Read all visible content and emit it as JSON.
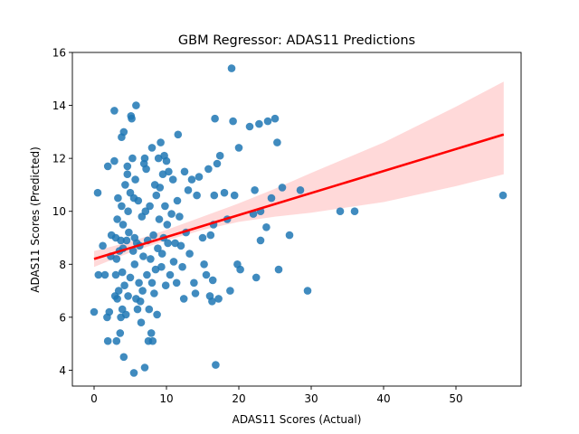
{
  "chart_data": {
    "type": "scatter",
    "title": "GBM Regressor: ADAS11 Predictions",
    "xlabel": "ADAS11 Scores (Actual)",
    "ylabel": "ADAS11 Scores (Predicted)",
    "xlim": [
      -3,
      59
    ],
    "ylim": [
      3.4,
      16
    ],
    "xticks": [
      0,
      10,
      20,
      30,
      40,
      50
    ],
    "yticks": [
      4,
      6,
      8,
      10,
      12,
      14,
      16
    ],
    "grid": false,
    "colors": {
      "points": "#1f77b4",
      "regression_line": "#ff0000",
      "confidence_band": "#ffcccc"
    },
    "regression": {
      "x": [
        0,
        56.6
      ],
      "y": [
        8.2,
        12.9
      ]
    },
    "confidence_band": {
      "x": [
        0,
        5,
        10,
        15,
        20,
        25,
        30,
        40,
        50,
        56.6
      ],
      "lower": [
        7.9,
        8.45,
        8.9,
        9.3,
        9.6,
        9.8,
        9.95,
        10.35,
        10.95,
        11.4
      ],
      "upper": [
        8.5,
        8.85,
        9.3,
        9.8,
        10.3,
        10.85,
        11.45,
        12.6,
        13.95,
        14.9
      ]
    },
    "points": [
      [
        0,
        6.2
      ],
      [
        0.5,
        10.7
      ],
      [
        0.6,
        7.6
      ],
      [
        1.2,
        8.7
      ],
      [
        1.5,
        7.6
      ],
      [
        1.8,
        6.0
      ],
      [
        1.9,
        5.1
      ],
      [
        1.9,
        11.7
      ],
      [
        2.1,
        6.2
      ],
      [
        2.3,
        8.3
      ],
      [
        2.4,
        9.1
      ],
      [
        2.8,
        13.8
      ],
      [
        2.8,
        11.9
      ],
      [
        2.9,
        6.8
      ],
      [
        3.0,
        7.6
      ],
      [
        3.0,
        9.0
      ],
      [
        3.1,
        5.1
      ],
      [
        3.1,
        8.2
      ],
      [
        3.2,
        6.7
      ],
      [
        3.2,
        9.7
      ],
      [
        3.3,
        10.5
      ],
      [
        3.4,
        7.0
      ],
      [
        3.5,
        8.5
      ],
      [
        3.6,
        5.4
      ],
      [
        3.7,
        6.0
      ],
      [
        3.7,
        8.9
      ],
      [
        3.8,
        12.8
      ],
      [
        3.8,
        10.2
      ],
      [
        3.9,
        6.3
      ],
      [
        3.9,
        7.7
      ],
      [
        4.0,
        8.6
      ],
      [
        4.0,
        9.5
      ],
      [
        4.1,
        13.0
      ],
      [
        4.1,
        4.5
      ],
      [
        4.2,
        7.2
      ],
      [
        4.3,
        11.0
      ],
      [
        4.4,
        6.1
      ],
      [
        4.5,
        8.9
      ],
      [
        4.6,
        11.4
      ],
      [
        4.6,
        11.7
      ],
      [
        4.7,
        6.8
      ],
      [
        4.7,
        10.0
      ],
      [
        4.8,
        9.2
      ],
      [
        5.0,
        7.5
      ],
      [
        5.0,
        10.7
      ],
      [
        5.1,
        13.6
      ],
      [
        5.2,
        13.5
      ],
      [
        5.3,
        12.0
      ],
      [
        5.4,
        8.5
      ],
      [
        5.5,
        10.5
      ],
      [
        5.5,
        3.9
      ],
      [
        5.6,
        8.0
      ],
      [
        5.6,
        9.0
      ],
      [
        5.7,
        11.2
      ],
      [
        5.8,
        14.0
      ],
      [
        5.8,
        6.7
      ],
      [
        5.9,
        8.8
      ],
      [
        6.0,
        6.3
      ],
      [
        6.1,
        10.4
      ],
      [
        6.2,
        7.3
      ],
      [
        6.3,
        8.7
      ],
      [
        6.4,
        6.6
      ],
      [
        6.5,
        5.8
      ],
      [
        6.6,
        9.8
      ],
      [
        6.7,
        7.0
      ],
      [
        6.8,
        8.3
      ],
      [
        6.9,
        11.8
      ],
      [
        7.0,
        4.1
      ],
      [
        7.0,
        12.0
      ],
      [
        7.1,
        10.0
      ],
      [
        7.2,
        11.6
      ],
      [
        7.3,
        7.6
      ],
      [
        7.4,
        8.9
      ],
      [
        7.5,
        5.1
      ],
      [
        7.6,
        6.3
      ],
      [
        7.7,
        10.2
      ],
      [
        7.8,
        8.2
      ],
      [
        7.9,
        5.4
      ],
      [
        8.0,
        12.4
      ],
      [
        8.0,
        7.3
      ],
      [
        8.1,
        5.1
      ],
      [
        8.2,
        9.1
      ],
      [
        8.3,
        6.9
      ],
      [
        8.4,
        11.0
      ],
      [
        8.5,
        7.8
      ],
      [
        8.6,
        10.6
      ],
      [
        8.7,
        6.1
      ],
      [
        8.8,
        8.6
      ],
      [
        8.9,
        12.0
      ],
      [
        9.0,
        9.7
      ],
      [
        9.1,
        10.9
      ],
      [
        9.2,
        12.6
      ],
      [
        9.3,
        7.9
      ],
      [
        9.4,
        8.4
      ],
      [
        9.5,
        11.4
      ],
      [
        9.6,
        9.0
      ],
      [
        9.7,
        12.1
      ],
      [
        9.8,
        10.2
      ],
      [
        9.9,
        7.2
      ],
      [
        10.0,
        11.9
      ],
      [
        10.1,
        9.5
      ],
      [
        10.2,
        8.8
      ],
      [
        10.3,
        11.5
      ],
      [
        10.5,
        7.6
      ],
      [
        10.7,
        9.9
      ],
      [
        10.9,
        11.2
      ],
      [
        11.0,
        8.1
      ],
      [
        11.2,
        8.8
      ],
      [
        11.4,
        7.3
      ],
      [
        11.5,
        10.4
      ],
      [
        11.6,
        12.9
      ],
      [
        11.8,
        9.8
      ],
      [
        12.0,
        8.7
      ],
      [
        12.2,
        7.9
      ],
      [
        12.4,
        6.7
      ],
      [
        12.5,
        11.5
      ],
      [
        12.7,
        9.2
      ],
      [
        13.0,
        10.8
      ],
      [
        13.2,
        8.4
      ],
      [
        13.5,
        11.2
      ],
      [
        13.8,
        7.3
      ],
      [
        14.0,
        6.9
      ],
      [
        14.2,
        10.6
      ],
      [
        14.5,
        11.3
      ],
      [
        15.0,
        9.0
      ],
      [
        15.2,
        8.0
      ],
      [
        15.5,
        7.6
      ],
      [
        15.8,
        11.6
      ],
      [
        16.0,
        6.8
      ],
      [
        16.1,
        9.1
      ],
      [
        16.3,
        6.6
      ],
      [
        16.4,
        7.4
      ],
      [
        16.5,
        9.5
      ],
      [
        16.6,
        10.6
      ],
      [
        16.7,
        13.5
      ],
      [
        16.8,
        4.2
      ],
      [
        17.0,
        11.8
      ],
      [
        17.2,
        6.7
      ],
      [
        17.4,
        12.1
      ],
      [
        18.0,
        10.7
      ],
      [
        18.4,
        9.7
      ],
      [
        18.8,
        7.0
      ],
      [
        19.0,
        15.4
      ],
      [
        19.2,
        13.4
      ],
      [
        19.4,
        10.6
      ],
      [
        19.8,
        8.0
      ],
      [
        20.0,
        12.4
      ],
      [
        20.2,
        7.8
      ],
      [
        21.5,
        13.2
      ],
      [
        22.0,
        9.9
      ],
      [
        22.2,
        10.8
      ],
      [
        22.4,
        7.5
      ],
      [
        22.8,
        13.3
      ],
      [
        23.0,
        10.0
      ],
      [
        23.0,
        8.9
      ],
      [
        23.8,
        9.4
      ],
      [
        24.0,
        13.4
      ],
      [
        24.5,
        10.5
      ],
      [
        25.0,
        13.5
      ],
      [
        25.3,
        12.6
      ],
      [
        25.5,
        7.8
      ],
      [
        26.0,
        10.9
      ],
      [
        27.0,
        9.1
      ],
      [
        28.5,
        10.8
      ],
      [
        29.5,
        7.0
      ],
      [
        34.0,
        10.0
      ],
      [
        36.0,
        10.0
      ],
      [
        56.5,
        10.6
      ]
    ]
  }
}
